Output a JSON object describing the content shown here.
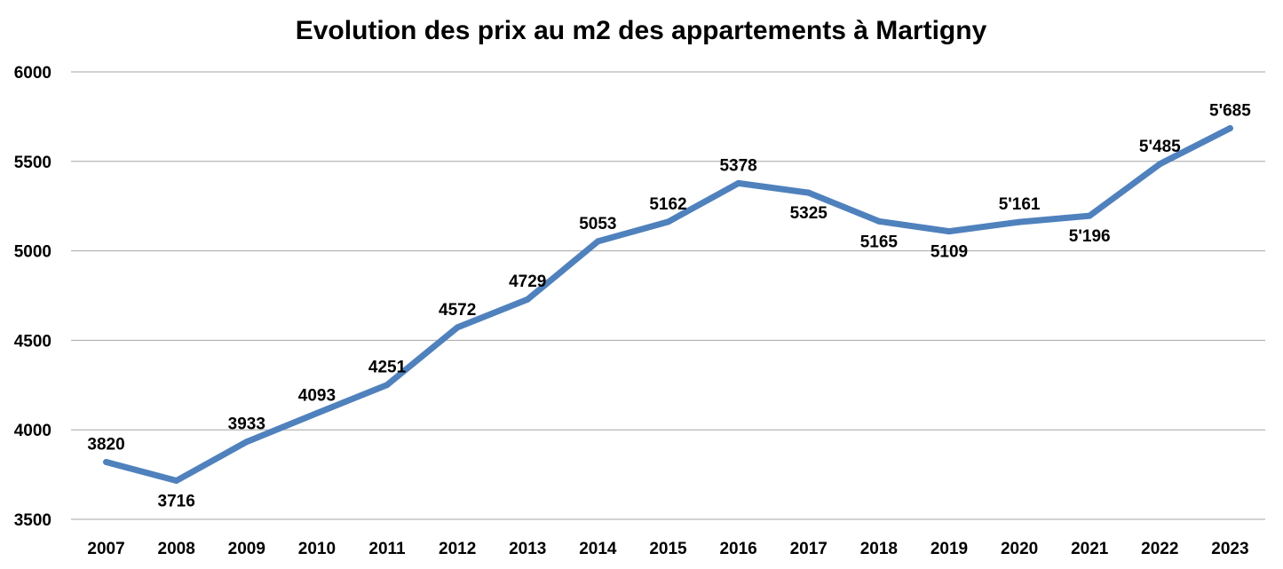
{
  "chart_data": {
    "type": "line",
    "title": "Evolution des prix au m2 des appartements à Martigny",
    "xlabel": "",
    "ylabel": "",
    "ylim": [
      3500,
      6000
    ],
    "yticks": [
      3500,
      4000,
      4500,
      5000,
      5500,
      6000
    ],
    "grid": true,
    "legend": "none",
    "categories": [
      "2007",
      "2008",
      "2009",
      "2010",
      "2011",
      "2012",
      "2013",
      "2014",
      "2015",
      "2016",
      "2017",
      "2018",
      "2019",
      "2020",
      "2021",
      "2022",
      "2023"
    ],
    "series": [
      {
        "color": "#4f81bd",
        "values": [
          3820,
          3716,
          3933,
          4093,
          4251,
          4572,
          4729,
          5053,
          5162,
          5378,
          5325,
          5165,
          5109,
          5161,
          5196,
          5485,
          5685
        ],
        "labels": [
          "3820",
          "3716",
          "3933",
          "4093",
          "4251",
          "4572",
          "4729",
          "5053",
          "5162",
          "5378",
          "5325",
          "5165",
          "5109",
          "5'161",
          "5'196",
          "5'485",
          "5'685"
        ],
        "label_side": [
          "above",
          "below",
          "above",
          "above",
          "above",
          "above",
          "above",
          "above",
          "above",
          "above",
          "below",
          "below",
          "below",
          "above",
          "below",
          "above",
          "above"
        ]
      }
    ]
  }
}
